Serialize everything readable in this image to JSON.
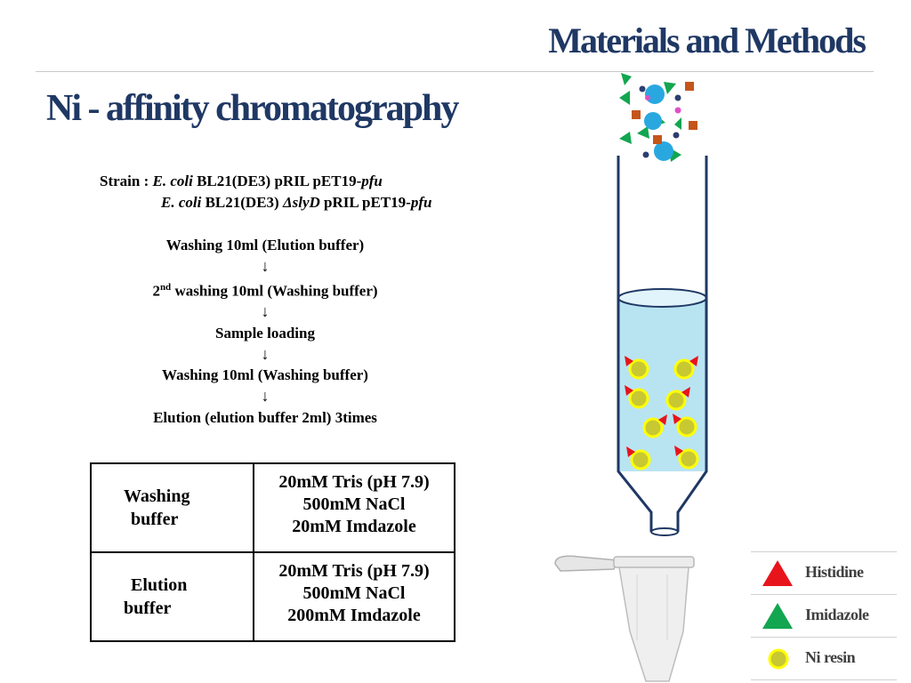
{
  "header": {
    "title": "Materials and Methods"
  },
  "section": {
    "title": "Ni - affinity chromatography"
  },
  "strain": {
    "prefix": "Strain : ",
    "line1": {
      "species": "E. coli",
      "strain": " BL21(DE3) pRIL pET19-",
      "plasmid": "pfu"
    },
    "line2": {
      "species": "E. coli",
      "strain": " BL21(DE3) ",
      "mutation": "ΔslyD",
      "rest": " pRIL pET19-",
      "plasmid": "pfu"
    }
  },
  "procedure": {
    "step1": "Washing 10ml (Elution buffer)",
    "step2_prefix": "2",
    "step2_sup": "nd",
    "step2_text": " washing 10ml (Washing buffer)",
    "step3": "Sample loading",
    "step4": "Washing 10ml (Washing buffer)",
    "step5": "Elution (elution buffer 2ml) 3times",
    "arrow": "↓"
  },
  "buffers": [
    {
      "label_line1": "Washing",
      "label_line2": "buffer",
      "components": [
        "20mM Tris (pH 7.9)",
        "500mM NaCl",
        "20mM Imdazole"
      ]
    },
    {
      "label_line1": "Elution",
      "label_line2": "buffer",
      "components": [
        "20mM Tris (pH 7.9)",
        "500mM NaCl",
        "200mM Imdazole"
      ]
    }
  ],
  "legend": [
    {
      "label": "Histidine",
      "icon": "red-triangle-icon",
      "color": "#e8141c"
    },
    {
      "label": "Imidazole",
      "icon": "green-triangle-icon",
      "color": "#12a650"
    },
    {
      "label": "Ni resin",
      "icon": "ni-resin-icon",
      "color": "#c8c832"
    }
  ],
  "colors": {
    "title": "#1f3864",
    "liquid": "#b8e4f2",
    "histidine": "#e8141c",
    "imidazole": "#12a650",
    "resin_fill": "#c8c832",
    "resin_ring": "#ffff00",
    "particle_blue": "#29a8e0",
    "particle_brown": "#c4561b",
    "particle_navy": "#2c3e70",
    "particle_pink": "#e04fc8",
    "column_stroke": "#1f3864"
  }
}
